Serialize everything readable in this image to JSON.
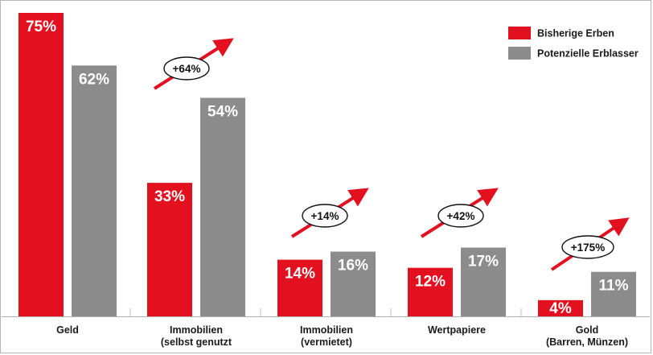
{
  "chart_data": {
    "type": "bar",
    "categories": [
      [
        "Geld"
      ],
      [
        "Immobilien",
        "(selbst genutzt"
      ],
      [
        "Immobilien",
        "(vermietet)"
      ],
      [
        "Wertpapiere"
      ],
      [
        "Gold",
        "(Barren, Münzen)"
      ]
    ],
    "series": [
      {
        "name": "Bisherige Erben",
        "color": "#e3101f",
        "values": [
          75,
          33,
          14,
          12,
          4
        ],
        "labels": [
          "75%",
          "33%",
          "14%",
          "12%",
          "4%"
        ]
      },
      {
        "name": "Potenzielle Erblasser",
        "color": "#8c8c8c",
        "values": [
          62,
          54,
          16,
          17,
          11
        ],
        "labels": [
          "62%",
          "54%",
          "16%",
          "17%",
          "11%"
        ]
      }
    ],
    "annotations": [
      "+64%",
      "+14%",
      "+42%",
      "+175%"
    ],
    "ylim": [
      0,
      75
    ],
    "grid": false,
    "legend_position": "top-right"
  }
}
